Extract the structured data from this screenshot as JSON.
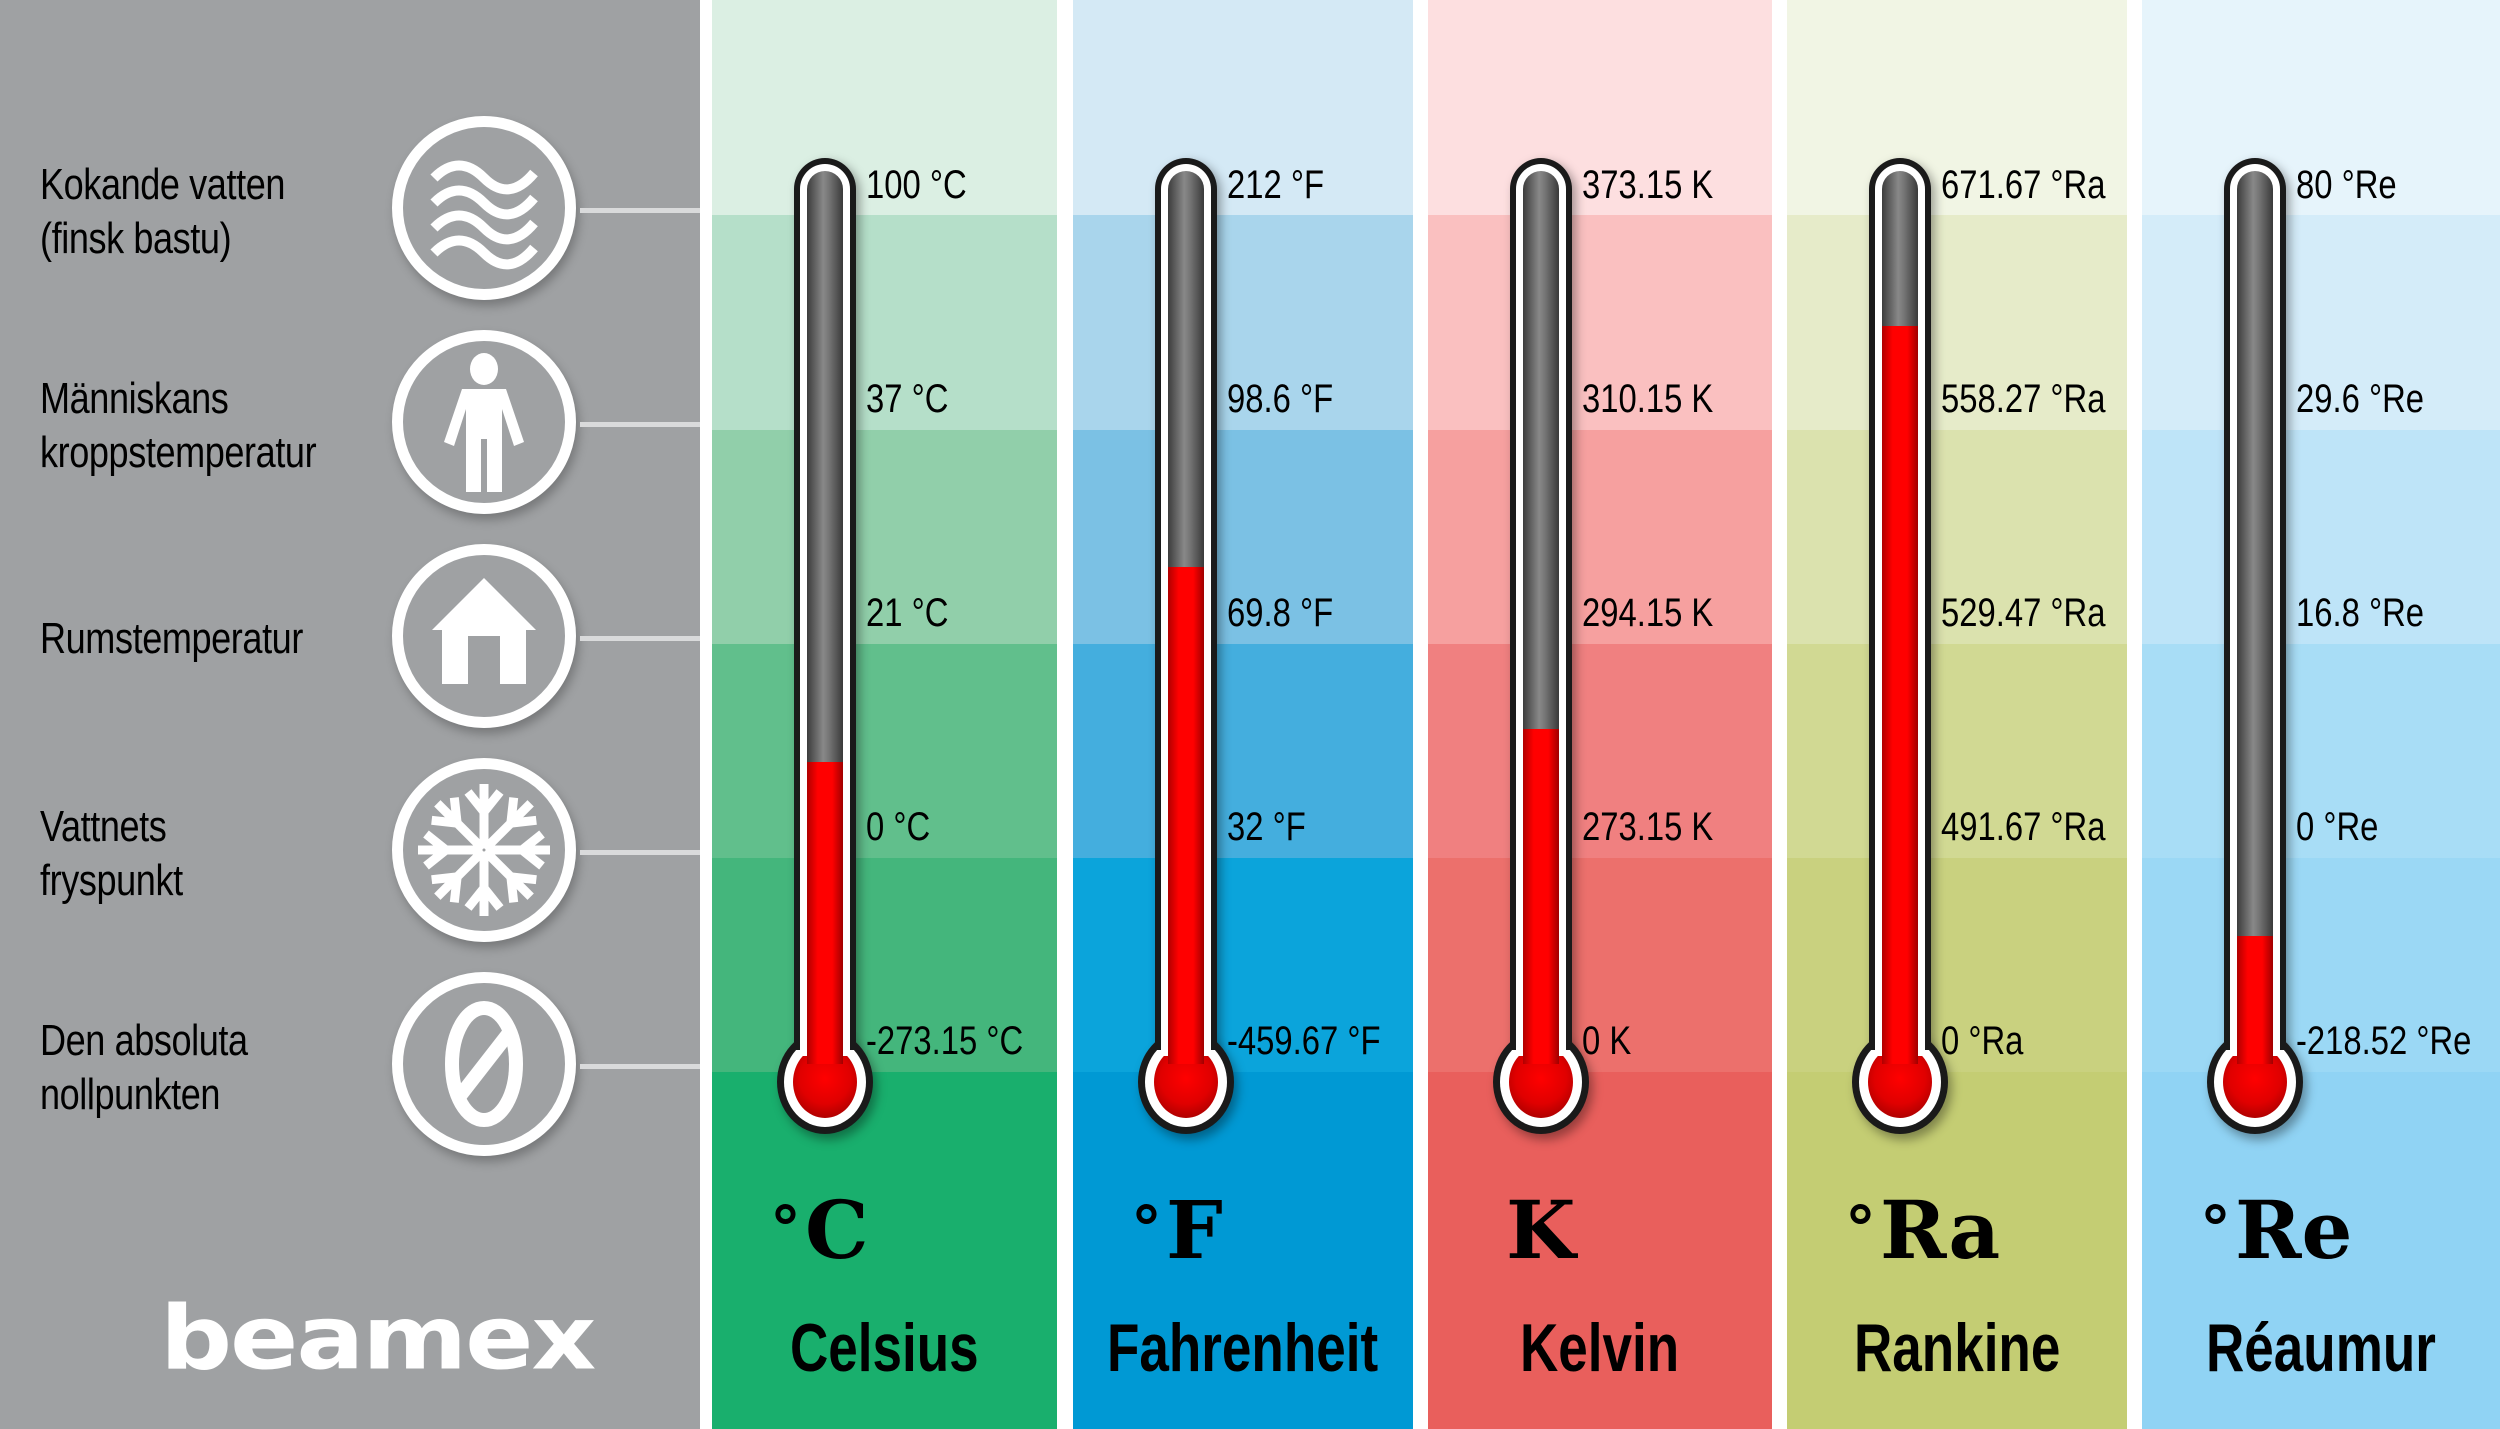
{
  "sidebar": {
    "background": "#9fa1a3",
    "logo": "beamex",
    "items": [
      {
        "line1": "Kokande vatten",
        "line2": "(finsk bastu)",
        "icon": "waves-icon"
      },
      {
        "line1": "Människans",
        "line2": "kroppstemperatur",
        "icon": "person-icon"
      },
      {
        "line1": "Rumstemperatur",
        "line2": "",
        "icon": "house-icon"
      },
      {
        "line1": "Vattnets",
        "line2": "fryspunkt",
        "icon": "snowflake-icon"
      },
      {
        "line1": "Den absoluta",
        "line2": "nollpunkten",
        "icon": "zero-icon"
      }
    ]
  },
  "scales": [
    {
      "name": "Celsius",
      "symbol": "C",
      "degree": "°",
      "ticks": [
        "100 °C",
        "37 °C",
        "21 °C",
        "0 °C",
        "-273.15 °C"
      ],
      "colors": [
        "#dbefe3",
        "#b5dfc9",
        "#91cfaa",
        "#61bf8c",
        "#44b67c",
        "#19af6d"
      ],
      "fill_top_pct": 0.665
    },
    {
      "name": "Fahrenheit",
      "symbol": "F",
      "degree": "°",
      "ticks": [
        "212 °F",
        "98.6 °F",
        "69.8 °F",
        "32 °F",
        "-459.67 °F"
      ],
      "colors": [
        "#d4e9f5",
        "#a9d5ec",
        "#7bc1e4",
        "#44aede",
        "#0ba4db",
        "#0099d4"
      ],
      "fill_top_pct": 0.445
    },
    {
      "name": "Kelvin",
      "symbol": "K",
      "degree": "",
      "ticks": [
        "373.15 K",
        "310.15 K",
        "294.15 K",
        "273.15 K",
        "0 K"
      ],
      "colors": [
        "#fddfe0",
        "#fac0c0",
        "#f6a09f",
        "#f08080",
        "#ec706c",
        "#e95f5c"
      ],
      "fill_top_pct": 0.628
    },
    {
      "name": "Rankine",
      "symbol": "Ra",
      "degree": "°",
      "ticks": [
        "671.67 °Ra",
        "558.27 °Ra",
        "529.47 °Ra",
        "491.67 °Ra",
        "0 °Ra"
      ],
      "colors": [
        "#f1f5e4",
        "#e6ebc9",
        "#dbe2ae",
        "#d1d993",
        "#c9d17f",
        "#c4cd73"
      ],
      "fill_top_pct": 0.174
    },
    {
      "name": "Réaumur",
      "symbol": "Re",
      "degree": "°",
      "ticks": [
        "80 °Re",
        "29.6 °Re",
        "16.8 °Re",
        "0 °Re",
        "-218.52 °Re"
      ],
      "colors": [
        "#e6f4fb",
        "#d4ecf9",
        "#bee4f8",
        "#a8ddf6",
        "#9bd8f5",
        "#90d3f4"
      ],
      "fill_top_pct": 0.86
    }
  ]
}
